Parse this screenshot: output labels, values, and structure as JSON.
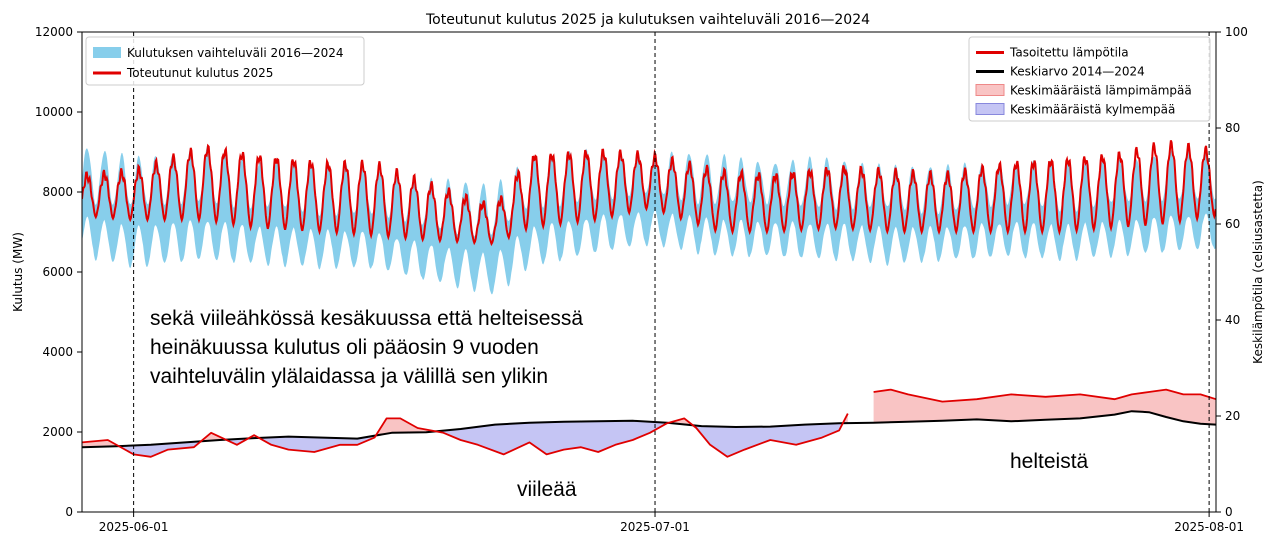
{
  "chart_data": {
    "type": "line",
    "title": "Toteutunut kulutus 2025 ja kulutuksen vaihteluväli 2016—2024",
    "xlabel": "",
    "ylabel": "Kulutus (MW)",
    "ylabel_right": "Keskilämpötila (celsiusastetta)",
    "x_start": "2025-05-27",
    "x_end": "2025-08-01",
    "xlim_days": [
      0,
      65.9
    ],
    "ylim": [
      0,
      12000
    ],
    "ylim_right": [
      0,
      100
    ],
    "yticks": [
      "0",
      "2000",
      "4000",
      "6000",
      "8000",
      "10000",
      "12000"
    ],
    "yticks_right": [
      "0",
      "20",
      "40",
      "60",
      "80",
      "100"
    ],
    "xticks": [
      {
        "day": 3.0,
        "label": "2025-06-01"
      },
      {
        "day": 33.3,
        "label": "2025-07-01"
      },
      {
        "day": 65.5,
        "label": "2025-08-01"
      }
    ],
    "month_boundaries_days": [
      3.0,
      33.3,
      65.5
    ],
    "legend_left": [
      {
        "label": "Kulutuksen vaihteluväli 2016—2024",
        "kind": "band",
        "color": "#87ceeb"
      },
      {
        "label": "Toteutunut kulutus 2025",
        "kind": "line",
        "color": "#e00000"
      }
    ],
    "legend_right": [
      {
        "label": "Tasoitettu lämpötila",
        "kind": "line",
        "color": "#e00000"
      },
      {
        "label": "Keskiarvo 2014—2024",
        "kind": "line",
        "color": "#000000"
      },
      {
        "label": "Keskimääräistä lämpimämpää",
        "kind": "patch",
        "color": "#f9c4c4"
      },
      {
        "label": "Keskimääräistä kylmempää",
        "kind": "patch",
        "color": "#c5c5f4"
      }
    ],
    "series": [
      {
        "name": "Kulutuksen vaihteluväli 2016—2024",
        "axis": "left",
        "kind": "daily-band",
        "x_days": [
          0,
          3,
          7,
          10,
          14,
          17,
          20,
          24,
          26,
          30,
          33,
          37,
          40,
          44,
          47,
          50,
          54,
          57,
          60,
          63,
          65.9
        ],
        "high": [
          9100,
          8900,
          9100,
          8800,
          8700,
          8600,
          8300,
          8200,
          8900,
          9000,
          9000,
          8900,
          8800,
          8800,
          8700,
          8600,
          8800,
          8700,
          8800,
          9000,
          9000
        ],
        "low": [
          6300,
          6000,
          6200,
          6100,
          6000,
          6000,
          5700,
          5300,
          6000,
          6400,
          6600,
          6300,
          6300,
          6200,
          6100,
          6200,
          6300,
          6200,
          6300,
          6400,
          6500
        ]
      },
      {
        "name": "Toteutunut kulutus 2025",
        "axis": "left",
        "kind": "daily-cycle",
        "x_days": [
          0,
          3,
          7,
          10,
          14,
          17,
          20,
          24,
          26,
          30,
          33,
          37,
          40,
          44,
          47,
          50,
          54,
          57,
          60,
          63,
          65.9
        ],
        "peak": [
          8400,
          8500,
          9100,
          8900,
          8700,
          8700,
          8200,
          7600,
          8900,
          9000,
          8900,
          8500,
          8400,
          8600,
          8500,
          8400,
          8700,
          8800,
          8900,
          9200,
          9000
        ],
        "trough": [
          7400,
          7300,
          7300,
          7100,
          7000,
          6900,
          6800,
          6700,
          7100,
          7300,
          7600,
          7000,
          7000,
          7100,
          7000,
          7000,
          7000,
          7000,
          7100,
          7200,
          7400
        ]
      },
      {
        "name": "Tasoitettu lämpötila",
        "axis": "right",
        "x_days": [
          0,
          1.5,
          3,
          4,
          5,
          6.5,
          7.5,
          9,
          10,
          11,
          12,
          13.5,
          15,
          16,
          17,
          17.7,
          18.5,
          19.5,
          21,
          22,
          23,
          24.5,
          26,
          27,
          28,
          29,
          30,
          31,
          32,
          33,
          34,
          35,
          35.7,
          36.5,
          37.5,
          38.5,
          40,
          41.5,
          43,
          44,
          44.5
        ],
        "values": [
          14.5,
          15,
          12,
          11.5,
          13,
          13.5,
          16.5,
          14,
          16,
          14,
          13,
          12.5,
          14,
          14,
          15.5,
          19.5,
          19.5,
          17.5,
          16.5,
          15,
          14,
          12,
          14.5,
          12,
          13,
          13.5,
          12.5,
          14,
          15,
          16.5,
          18.5,
          19.5,
          17.5,
          14,
          11.5,
          13,
          15,
          14,
          15.5,
          17,
          20.5
        ]
      },
      {
        "name": "Tasoitettu lämpötila (jatko)",
        "axis": "right",
        "x_days": [
          46,
          47,
          48,
          50,
          52,
          54,
          56,
          58,
          60,
          61,
          62,
          63,
          64,
          65,
          65.9
        ],
        "values": [
          25,
          25.5,
          24.5,
          23,
          23.5,
          24.5,
          24,
          24.5,
          23.5,
          24.5,
          25,
          25.5,
          24.5,
          24.5,
          23.5
        ]
      },
      {
        "name": "Keskiarvo 2014—2024",
        "axis": "right",
        "x_days": [
          0,
          2,
          4,
          6,
          8,
          10,
          12,
          14,
          16,
          18,
          20,
          22,
          24,
          26,
          28,
          30,
          32,
          34,
          36,
          38,
          40,
          42,
          44,
          46,
          48,
          50,
          52,
          54,
          56,
          58,
          60,
          61,
          62,
          63,
          64,
          65,
          65.9
        ],
        "values": [
          13.5,
          13.7,
          14,
          14.5,
          15,
          15.4,
          15.7,
          15.5,
          15.3,
          16.5,
          16.6,
          17.3,
          18.2,
          18.6,
          18.8,
          18.9,
          19,
          18.6,
          17.9,
          17.7,
          17.8,
          18.2,
          18.5,
          18.6,
          18.8,
          19,
          19.3,
          18.9,
          19.2,
          19.5,
          20.3,
          21,
          20.8,
          19.8,
          18.9,
          18.4,
          18.2
        ]
      }
    ]
  },
  "annotations": {
    "main_text_lines": [
      "sekä viileähkössä kesäkuussa että helteisessä",
      "heinäkuussa kulutus oli pääosin 9 vuoden",
      "vaihteluvälin ylälaidassa ja välillä sen ylikin"
    ],
    "cool_label": "viileää",
    "hot_label": "helteistä"
  },
  "colors": {
    "band": "#87ceeb",
    "consumption": "#e00000",
    "temperature": "#e00000",
    "average": "#000000",
    "warm_fill": "#f9c4c4",
    "cold_fill": "#c5c5f4"
  }
}
